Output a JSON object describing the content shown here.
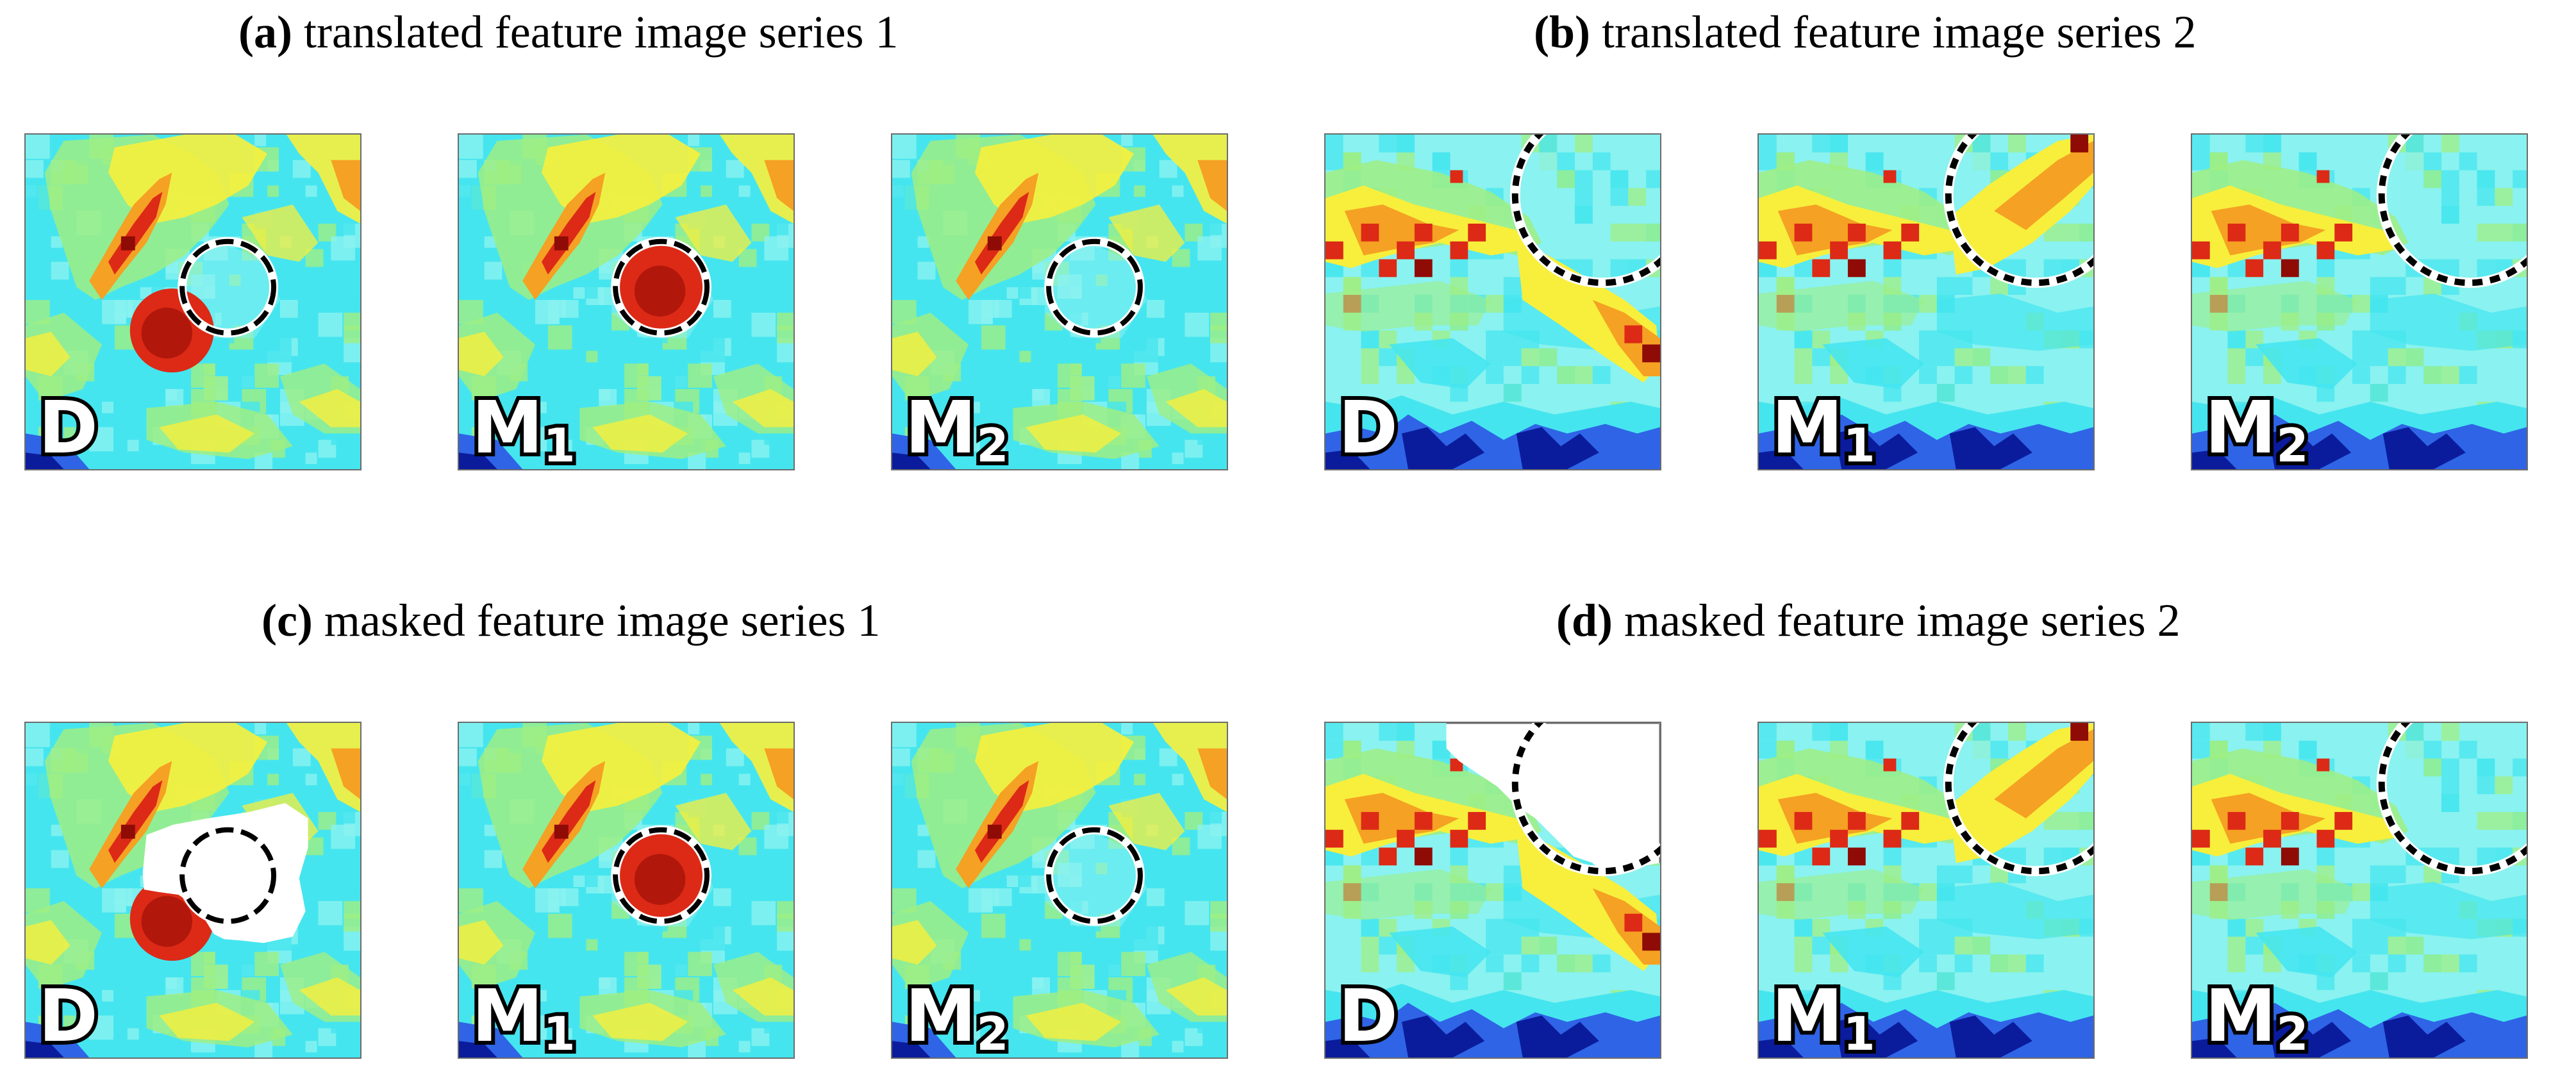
{
  "colors": {
    "cyan": "#45e5ef",
    "light_cyan": "#8af2f0",
    "green": "#9fef83",
    "yellow": "#f7ef3c",
    "orange": "#f5a123",
    "red": "#dc2a16",
    "dark_red": "#8f0b05",
    "blue": "#2f64e6",
    "dark_blue": "#0a1c9c",
    "mask_white": "#ffffff",
    "circle_black": "#000000"
  },
  "panels": [
    {
      "id": "a",
      "tag": "(a)",
      "title": "translated feature image series 1",
      "tiles": [
        {
          "label": "D",
          "sub": ""
        },
        {
          "label": "M",
          "sub": "1"
        },
        {
          "label": "M",
          "sub": "2"
        }
      ]
    },
    {
      "id": "b",
      "tag": "(b)",
      "title": "translated feature image series 2",
      "tiles": [
        {
          "label": "D",
          "sub": ""
        },
        {
          "label": "M",
          "sub": "1"
        },
        {
          "label": "M",
          "sub": "2"
        }
      ]
    },
    {
      "id": "c",
      "tag": "(c)",
      "title": "masked feature image series 1",
      "tiles": [
        {
          "label": "D",
          "sub": ""
        },
        {
          "label": "M",
          "sub": "1"
        },
        {
          "label": "M",
          "sub": "2"
        }
      ]
    },
    {
      "id": "d",
      "tag": "(d)",
      "title": "masked feature image series 2",
      "tiles": [
        {
          "label": "D",
          "sub": ""
        },
        {
          "label": "M",
          "sub": "1"
        },
        {
          "label": "M",
          "sub": "2"
        }
      ]
    }
  ]
}
